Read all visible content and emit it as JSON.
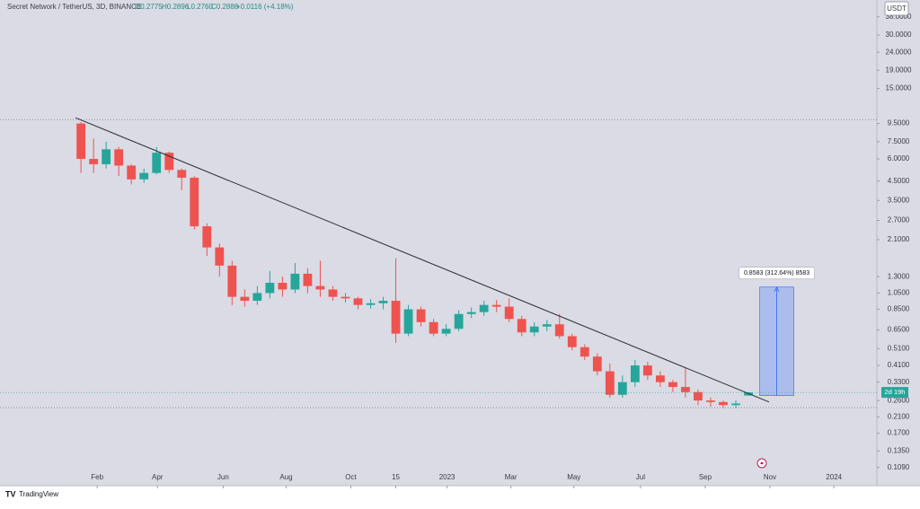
{
  "chart_data": {
    "type": "candlestick",
    "title": "Secret Network / TetherUS, 3D, BINANCE",
    "ohlc_legend": [
      "O0.2775",
      "H0.2896",
      "L0.2760",
      "C0.2888",
      "+0.0116 (+4.18%)"
    ],
    "currency": "USDT",
    "countdown": "2d 19h",
    "brand": "TradingView",
    "log_scale": true,
    "up_color": "#26a69a",
    "down_color": "#ef5350",
    "open": [
      9.5,
      6.0,
      5.6,
      6.8,
      5.5,
      4.6,
      5.0,
      6.5,
      5.2,
      4.7,
      2.5,
      1.9,
      1.5,
      1.0,
      0.95,
      1.05,
      1.2,
      1.1,
      1.35,
      1.15,
      1.1,
      1.0,
      0.98,
      0.9,
      0.92,
      0.95,
      0.62,
      0.85,
      0.72,
      0.62,
      0.66,
      0.8,
      0.82,
      0.9,
      0.88,
      0.75,
      0.63,
      0.68,
      0.7,
      0.6,
      0.52,
      0.46,
      0.38,
      0.28,
      0.33,
      0.41,
      0.36,
      0.33,
      0.31,
      0.29,
      0.26,
      0.255,
      0.245,
      0.2775
    ],
    "high": [
      9.7,
      7.8,
      7.5,
      7.0,
      5.6,
      5.3,
      7.0,
      6.6,
      5.3,
      4.8,
      2.6,
      2.0,
      1.6,
      1.1,
      1.15,
      1.4,
      1.3,
      1.55,
      1.45,
      1.6,
      1.15,
      1.05,
      1.0,
      0.97,
      1.0,
      1.65,
      0.9,
      0.88,
      0.75,
      0.7,
      0.84,
      0.87,
      0.95,
      0.96,
      0.98,
      0.78,
      0.72,
      0.74,
      0.8,
      0.62,
      0.54,
      0.48,
      0.42,
      0.36,
      0.44,
      0.43,
      0.38,
      0.34,
      0.4,
      0.3,
      0.27,
      0.26,
      0.26,
      0.2896
    ],
    "low": [
      5.0,
      5.0,
      5.3,
      4.8,
      4.3,
      4.4,
      4.9,
      5.0,
      4.0,
      2.4,
      1.7,
      1.3,
      0.9,
      0.88,
      0.9,
      0.98,
      1.0,
      1.05,
      1.05,
      1.0,
      0.95,
      0.93,
      0.85,
      0.86,
      0.85,
      0.55,
      0.6,
      0.68,
      0.6,
      0.6,
      0.64,
      0.76,
      0.78,
      0.82,
      0.72,
      0.6,
      0.6,
      0.64,
      0.58,
      0.5,
      0.44,
      0.36,
      0.27,
      0.27,
      0.31,
      0.34,
      0.31,
      0.29,
      0.27,
      0.245,
      0.24,
      0.235,
      0.235,
      0.276
    ],
    "close": [
      6.0,
      5.6,
      6.8,
      5.5,
      4.6,
      5.0,
      6.5,
      5.2,
      4.7,
      2.5,
      1.9,
      1.5,
      1.0,
      0.95,
      1.05,
      1.2,
      1.1,
      1.35,
      1.15,
      1.1,
      1.0,
      0.98,
      0.9,
      0.92,
      0.95,
      0.62,
      0.85,
      0.72,
      0.62,
      0.66,
      0.8,
      0.82,
      0.9,
      0.88,
      0.75,
      0.63,
      0.68,
      0.7,
      0.6,
      0.52,
      0.46,
      0.38,
      0.28,
      0.33,
      0.41,
      0.36,
      0.33,
      0.31,
      0.29,
      0.26,
      0.255,
      0.245,
      0.25,
      0.2888
    ],
    "xlim": [
      -6.43,
      63.2
    ],
    "ylim": [
      0.086,
      47.3
    ],
    "xticks": [
      {
        "value": 1.29,
        "label": "Feb"
      },
      {
        "value": 6.07,
        "label": "Apr"
      },
      {
        "value": 11.29,
        "label": "Jun"
      },
      {
        "value": 16.29,
        "label": "Aug"
      },
      {
        "value": 21.43,
        "label": "Oct"
      },
      {
        "value": 25.0,
        "label": "15"
      },
      {
        "value": 29.07,
        "label": "2023"
      },
      {
        "value": 34.14,
        "label": "Mar"
      },
      {
        "value": 39.14,
        "label": "May"
      },
      {
        "value": 44.43,
        "label": "Jul"
      },
      {
        "value": 49.57,
        "label": "Sep"
      },
      {
        "value": 54.71,
        "label": "Nov"
      },
      {
        "value": 59.79,
        "label": "2024"
      }
    ],
    "yticks": [
      {
        "value": 38,
        "label": "38.0000"
      },
      {
        "value": 30,
        "label": "30.0000"
      },
      {
        "value": 24,
        "label": "24.0000"
      },
      {
        "value": 19,
        "label": "19.0000"
      },
      {
        "value": 15,
        "label": "15.0000"
      },
      {
        "value": 9.5,
        "label": "9.5000"
      },
      {
        "value": 7.5,
        "label": "7.5000"
      },
      {
        "value": 6,
        "label": "6.0000"
      },
      {
        "value": 4.5,
        "label": "4.5000"
      },
      {
        "value": 3.5,
        "label": "3.5000"
      },
      {
        "value": 2.7,
        "label": "2.7000"
      },
      {
        "value": 2.1,
        "label": "2.1000"
      },
      {
        "value": 1.3,
        "label": "1.3000"
      },
      {
        "value": 1.05,
        "label": "1.0500"
      },
      {
        "value": 0.85,
        "label": "0.8500"
      },
      {
        "value": 0.65,
        "label": "0.6500"
      },
      {
        "value": 0.51,
        "label": "0.5100"
      },
      {
        "value": 0.41,
        "label": "0.4100"
      },
      {
        "value": 0.33,
        "label": "0.3300"
      },
      {
        "value": 0.26,
        "label": "0.2600"
      },
      {
        "value": 0.21,
        "label": "0.2100"
      },
      {
        "value": 0.17,
        "label": "0.1700"
      },
      {
        "value": 0.135,
        "label": "0.1350"
      },
      {
        "value": 0.109,
        "label": "0.1090"
      }
    ],
    "hlines": [
      10.0,
      0.237
    ],
    "trendline": {
      "x": [
        -0.43,
        54.64
      ],
      "y": [
        10.24,
        0.255
      ]
    },
    "measure": {
      "label": "0.8583 (312.64%) 8583",
      "x": [
        53.9,
        56.6
      ],
      "y": [
        0.277,
        1.135
      ]
    }
  }
}
